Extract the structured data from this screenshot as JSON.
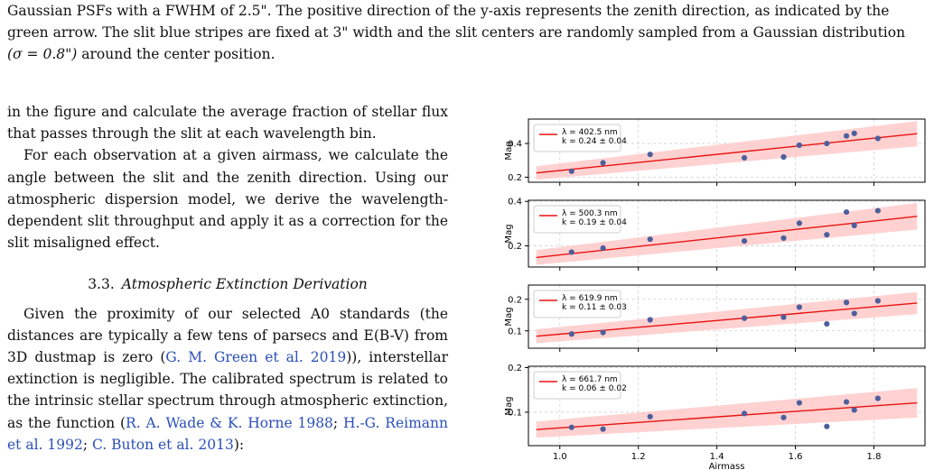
{
  "caption": {
    "line1": "Gaussian PSFs with a FWHM of 2.5\". The positive direction of the y-axis represents the zenith direction, as indicated by the",
    "line2": "green arrow. The slit blue stripes are fixed at 3\" width and the slit centers are randomly sampled from a Gaussian distribution",
    "line3_sigma": "(σ = 0.8\")",
    "line3_rest": " around the center position."
  },
  "body": {
    "p1": "in the figure and calculate the average fraction of stellar flux that passes through the slit at each wavelength bin.",
    "p2": "For each observation at a given airmass, we calculate the angle between the slit and the zenith direction. Using our atmospheric dispersion model, we derive the wavelength-dependent slit throughput and apply it as a correction for the slit misaligned effect.",
    "section_number": "3.3.",
    "section_title": "Atmospheric Extinction Derivation",
    "p3_a": "Given the proximity of our selected A0 standards (the distances are typically a few tens of parsecs and E(B-V) from 3D dustmap is zero (",
    "p3_cite1": "G. M. Green et al. 2019",
    "p3_b": ")), interstellar extinction is negligible. The calibrated spectrum is related to the intrinsic stellar spectrum through atmospheric extinction, as the function (",
    "p3_cite2": "R. A. Wade & K. Horne 1988",
    "p3_sep1": "; ",
    "p3_cite3": "H.-G. Reimann et al. 1992",
    "p3_sep2": "; ",
    "p3_cite4": "C. Buton et al. 2013",
    "p3_c": "):"
  },
  "colors": {
    "fit_line": "#e8130f",
    "band": "#ffc9c9",
    "points": "#4c5f9c",
    "grid": "#d0d0d0",
    "citation": "#2b4fb8"
  },
  "chart_data": {
    "type": "scatter",
    "xlabel": "Airmass",
    "ylabel": "Mag",
    "xlim": [
      0.92,
      1.93
    ],
    "xticks": [
      1.0,
      1.2,
      1.4,
      1.6,
      1.8
    ],
    "xtick_labels": [
      "1.0",
      "1.2",
      "1.4",
      "1.6",
      "1.8"
    ],
    "grid": true,
    "legend_position": "top-left",
    "panels": [
      {
        "legend_lines": [
          "λ = 402.5 nm",
          "k = 0.24 ± 0.04"
        ],
        "ylim": [
          0.17,
          0.545
        ],
        "yticks": [
          0.2,
          0.4
        ],
        "ytick_labels": [
          "0.2",
          "0.4"
        ],
        "x": [
          1.03,
          1.11,
          1.23,
          1.47,
          1.57,
          1.61,
          1.68,
          1.73,
          1.75,
          1.81
        ],
        "y": [
          0.235,
          0.285,
          0.335,
          0.315,
          0.32,
          0.39,
          0.4,
          0.445,
          0.46,
          0.43
        ],
        "fit": {
          "x": [
            0.94,
            1.91
          ],
          "y": [
            0.225,
            0.458
          ]
        },
        "band_halfwidth": [
          0.04,
          0.075
        ]
      },
      {
        "legend_lines": [
          "λ = 500.3 nm",
          "k = 0.19 ± 0.04"
        ],
        "ylim": [
          0.105,
          0.405
        ],
        "yticks": [
          0.2,
          0.4
        ],
        "ytick_labels": [
          "0.2",
          "0.4"
        ],
        "x": [
          1.03,
          1.11,
          1.23,
          1.47,
          1.57,
          1.61,
          1.68,
          1.73,
          1.75,
          1.81
        ],
        "y": [
          0.172,
          0.19,
          0.23,
          0.222,
          0.235,
          0.302,
          0.25,
          0.352,
          0.292,
          0.358
        ],
        "fit": {
          "x": [
            0.94,
            1.91
          ],
          "y": [
            0.148,
            0.333
          ]
        },
        "band_halfwidth": [
          0.033,
          0.06
        ]
      },
      {
        "legend_lines": [
          "λ = 619.9 nm",
          "k = 0.11 ± 0.03"
        ],
        "ylim": [
          0.045,
          0.245
        ],
        "yticks": [
          0.1,
          0.2
        ],
        "ytick_labels": [
          "0.1",
          "0.2"
        ],
        "x": [
          1.03,
          1.11,
          1.23,
          1.47,
          1.57,
          1.61,
          1.68,
          1.73,
          1.75,
          1.81
        ],
        "y": [
          0.09,
          0.095,
          0.135,
          0.14,
          0.143,
          0.175,
          0.122,
          0.19,
          0.155,
          0.195
        ],
        "fit": {
          "x": [
            0.94,
            1.91
          ],
          "y": [
            0.083,
            0.188
          ]
        },
        "band_halfwidth": [
          0.022,
          0.035
        ]
      },
      {
        "legend_lines": [
          "λ = 661.7 nm",
          "k = 0.06 ± 0.02"
        ],
        "ylim": [
          0.025,
          0.203
        ],
        "yticks": [
          0.1,
          0.2
        ],
        "ytick_labels": [
          "0.1",
          "0.2"
        ],
        "x": [
          1.03,
          1.11,
          1.23,
          1.47,
          1.57,
          1.61,
          1.68,
          1.73,
          1.75,
          1.81
        ],
        "y": [
          0.066,
          0.062,
          0.09,
          0.097,
          0.088,
          0.121,
          0.068,
          0.123,
          0.105,
          0.131
        ],
        "fit": {
          "x": [
            0.94,
            1.91
          ],
          "y": [
            0.061,
            0.121
          ]
        },
        "band_halfwidth": [
          0.018,
          0.033
        ]
      }
    ]
  }
}
